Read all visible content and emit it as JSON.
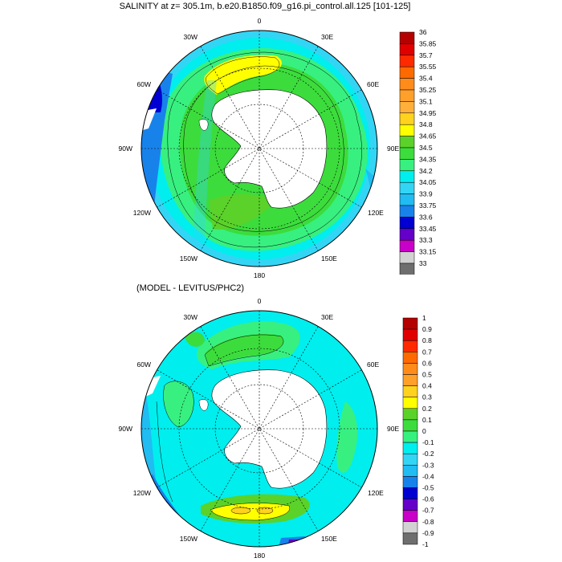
{
  "panels": [
    {
      "title": "SALINITY at z= 305.1m, b.e20.B1850.f09_g16.pi_control.all.125 [101-125]",
      "lon_labels": [
        "0",
        "30E",
        "60E",
        "90E",
        "120E",
        "150E",
        "180",
        "150W",
        "120W",
        "90W",
        "60W",
        "30W"
      ],
      "colorbar": {
        "levels": [
          "36",
          "35.85",
          "35.7",
          "35.55",
          "35.4",
          "35.25",
          "35.1",
          "34.95",
          "34.8",
          "34.65",
          "34.5",
          "34.35",
          "34.2",
          "34.05",
          "33.9",
          "33.75",
          "33.6",
          "33.45",
          "33.3",
          "33.15",
          "33"
        ],
        "colors": [
          "#b40000",
          "#e10000",
          "#ff2a00",
          "#ff6a00",
          "#ff8c1a",
          "#ffa02a",
          "#ffb03a",
          "#ffd21e",
          "#ffff00",
          "#5ad22a",
          "#3cdc3c",
          "#38f080",
          "#00eeee",
          "#33d5f5",
          "#20bcf2",
          "#1882eb",
          "#0000d2",
          "#6400c8",
          "#c800c8",
          "#d2d2d2",
          "#6e6e6e"
        ]
      }
    },
    {
      "title": "(MODEL - LEVITUS/PHC2)",
      "lon_labels": [
        "0",
        "30E",
        "60E",
        "90E",
        "120E",
        "150E",
        "180",
        "150W",
        "120W",
        "90W",
        "60W",
        "30W"
      ],
      "colorbar": {
        "levels": [
          "1",
          "0.9",
          "0.8",
          "0.7",
          "0.6",
          "0.5",
          "0.4",
          "0.3",
          "0.2",
          "0.1",
          "0",
          "-0.1",
          "-0.2",
          "-0.3",
          "-0.4",
          "-0.5",
          "-0.6",
          "-0.7",
          "-0.8",
          "-0.9",
          "-1"
        ],
        "colors": [
          "#b40000",
          "#e10000",
          "#ff2a00",
          "#ff6a00",
          "#ff8c1a",
          "#ffa02a",
          "#ffd21e",
          "#ffff00",
          "#5ad22a",
          "#3cdc3c",
          "#38f080",
          "#00eeee",
          "#33d5f5",
          "#20bcf2",
          "#1882eb",
          "#0000d2",
          "#6400c8",
          "#c800c8",
          "#d2d2d2",
          "#6e6e6e"
        ]
      }
    }
  ],
  "colors": {
    "land": "#ffffff",
    "ocean_dominant_top": "#38f080",
    "ocean_dominant_bottom": "#00eeee"
  }
}
